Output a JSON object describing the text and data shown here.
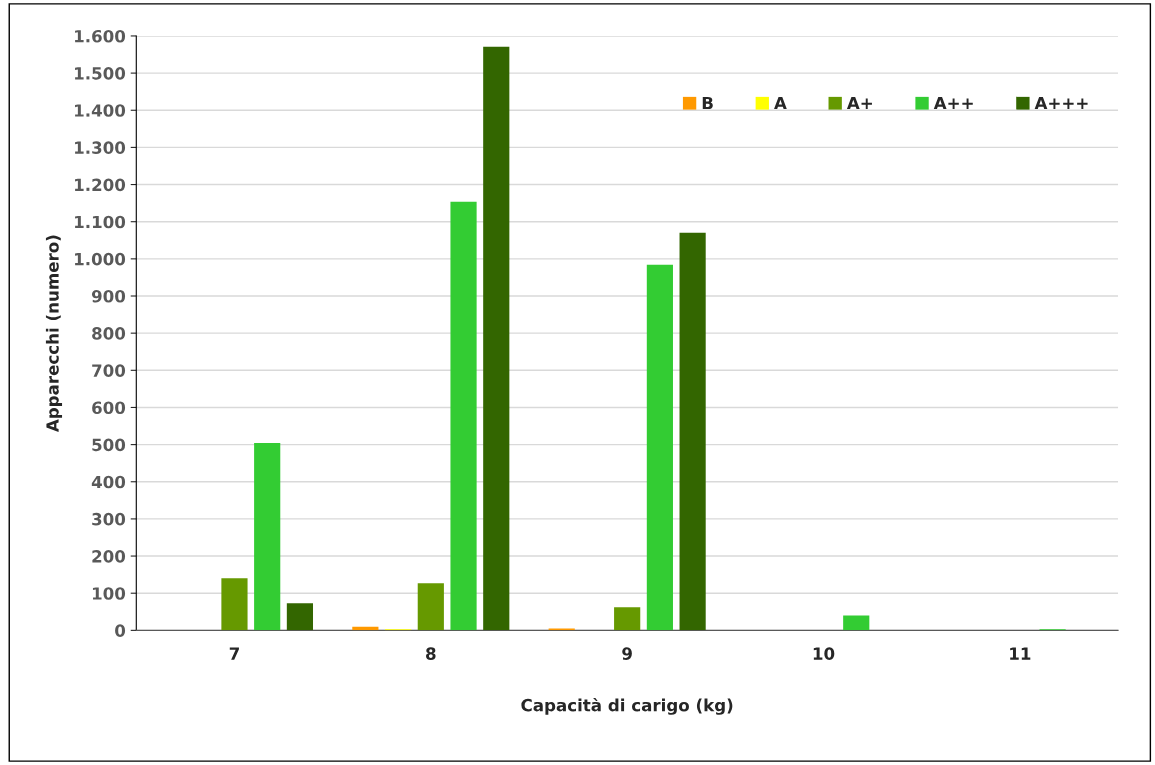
{
  "chart_data": {
    "type": "bar",
    "xlabel": "Capacità di carigo (kg)",
    "ylabel": "Apparecchi (numero)",
    "categories": [
      "7",
      "8",
      "9",
      "10",
      "11"
    ],
    "series": [
      {
        "name": "B",
        "color": "#ff9900",
        "values": [
          null,
          10,
          5,
          null,
          null
        ]
      },
      {
        "name": "A",
        "color": "#ffff00",
        "values": [
          null,
          3,
          null,
          null,
          null
        ]
      },
      {
        "name": "A+",
        "color": "#669900",
        "values": [
          140,
          127,
          62,
          null,
          null
        ]
      },
      {
        "name": "A++",
        "color": "#33cc33",
        "values": [
          504,
          1154,
          984,
          40,
          3
        ]
      },
      {
        "name": "A+++",
        "color": "#336600",
        "values": [
          73,
          1571,
          1070,
          null,
          null
        ]
      }
    ],
    "ylim": [
      0,
      1600
    ],
    "yticks": [
      0,
      100,
      200,
      300,
      400,
      500,
      600,
      700,
      800,
      900,
      {
        "value": 1000,
        "label": "1.000"
      },
      {
        "value": 1100,
        "label": "1.100"
      },
      {
        "value": 1200,
        "label": "1.200"
      },
      {
        "value": 1300,
        "label": "1.300"
      },
      {
        "value": 1400,
        "label": "1.400"
      },
      {
        "value": 1500,
        "label": "1.500"
      },
      {
        "value": 1600,
        "label": "1.600"
      }
    ],
    "grid": "y",
    "legend": "top right"
  }
}
